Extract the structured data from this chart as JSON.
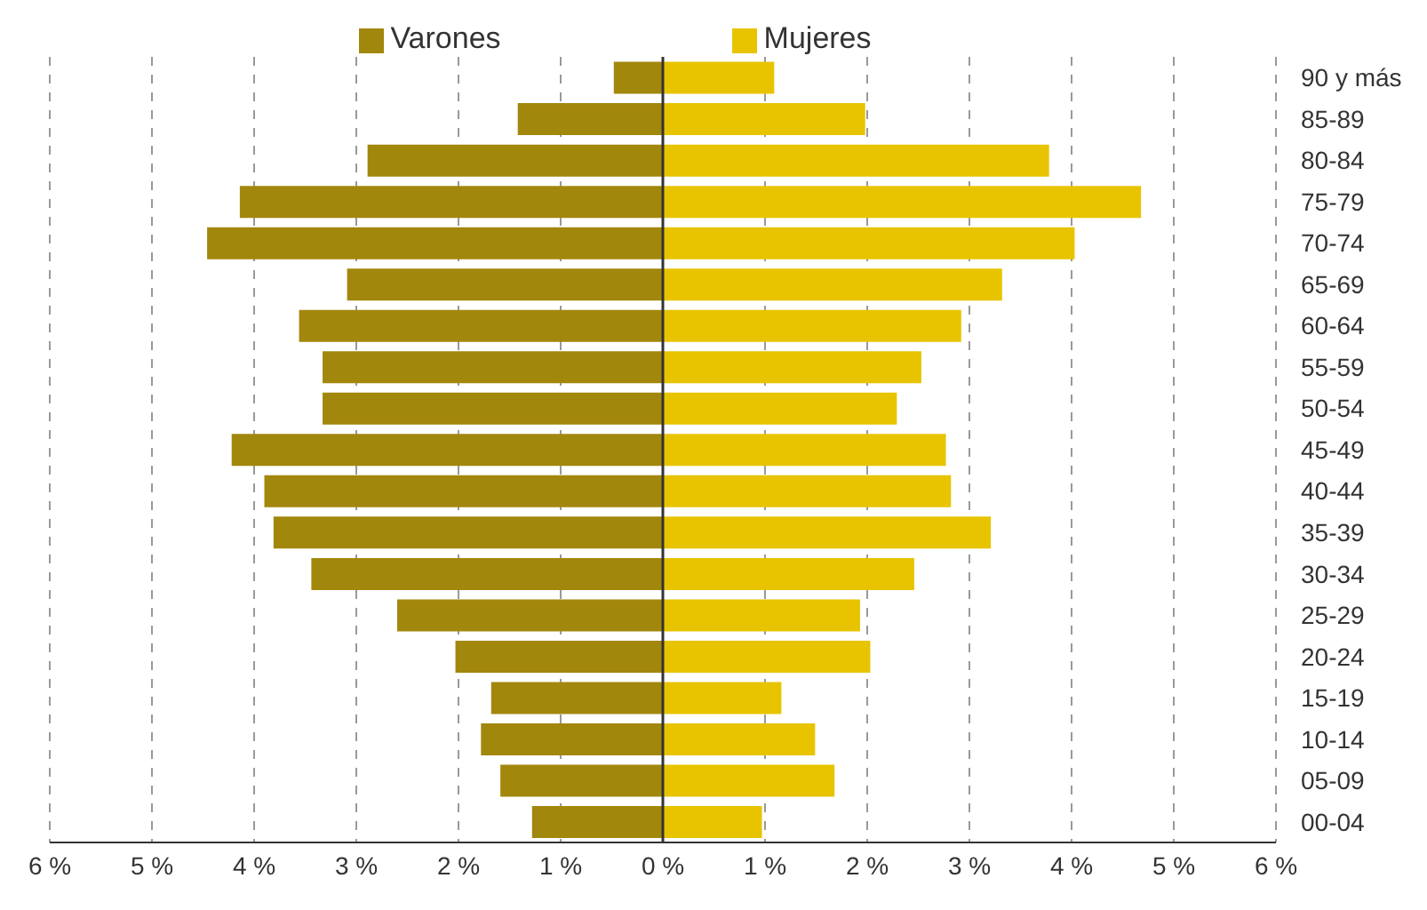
{
  "chart_data": {
    "type": "bar",
    "orientation": "horizontal",
    "stacked": true,
    "categories": [
      "90 y más",
      "85-89",
      "80-84",
      "75-79",
      "70-74",
      "65-69",
      "60-64",
      "55-59",
      "50-54",
      "45-49",
      "40-44",
      "35-39",
      "30-34",
      "25-29",
      "20-24",
      "15-19",
      "10-14",
      "05-09",
      "00-04"
    ],
    "series": [
      {
        "name": "Varones",
        "color": "#a2870d",
        "values": [
          -0.48,
          -1.42,
          -2.89,
          -4.14,
          -4.46,
          -3.09,
          -3.56,
          -3.33,
          -3.33,
          -4.22,
          -3.9,
          -3.81,
          -3.44,
          -2.6,
          -2.03,
          -1.68,
          -1.78,
          -1.59,
          -1.28
        ]
      },
      {
        "name": "Mujeres",
        "color": "#e8c400",
        "values": [
          1.09,
          1.98,
          3.78,
          4.68,
          4.03,
          3.32,
          2.92,
          2.53,
          2.29,
          2.77,
          2.82,
          3.21,
          2.46,
          1.93,
          2.03,
          1.16,
          1.49,
          1.68,
          0.97
        ]
      }
    ],
    "xlim": [
      -6,
      6
    ],
    "xticks": [
      {
        "value": -6,
        "label": "6 %"
      },
      {
        "value": -5,
        "label": "5 %"
      },
      {
        "value": -4,
        "label": "4 %"
      },
      {
        "value": -3,
        "label": "3 %"
      },
      {
        "value": -2,
        "label": "2 %"
      },
      {
        "value": -1,
        "label": "1 %"
      },
      {
        "value": 0,
        "label": "0 %"
      },
      {
        "value": 1,
        "label": "1 %"
      },
      {
        "value": 2,
        "label": "2 %"
      },
      {
        "value": 3,
        "label": "3 %"
      },
      {
        "value": 4,
        "label": "4 %"
      },
      {
        "value": 5,
        "label": "5 %"
      },
      {
        "value": 6,
        "label": "6 %"
      }
    ],
    "ref_lines": [
      {
        "axis": "x",
        "value": 0,
        "color": "#333333",
        "line_style": "solid"
      }
    ],
    "grid": "x",
    "legend": "top"
  }
}
